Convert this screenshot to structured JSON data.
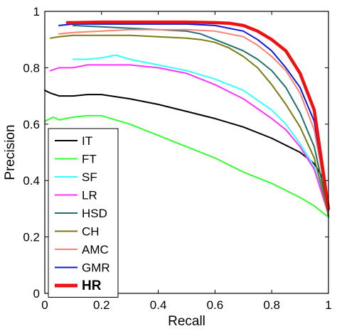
{
  "chart_data": {
    "type": "line",
    "xlabel": "Recall",
    "ylabel": "Precision",
    "xlim": [
      0,
      1
    ],
    "ylim": [
      0,
      1
    ],
    "xticks": [
      "0",
      "0.2",
      "0.4",
      "0.6",
      "0.8",
      "1"
    ],
    "yticks": [
      "0",
      "0.2",
      "0.4",
      "0.6",
      "0.8",
      "1"
    ],
    "legend_position": "bottom-left",
    "grid": false,
    "series": [
      {
        "name": "IT",
        "color": "#000000",
        "bold": false,
        "x": [
          0.0,
          0.02,
          0.05,
          0.1,
          0.15,
          0.2,
          0.3,
          0.4,
          0.5,
          0.6,
          0.7,
          0.8,
          0.9,
          0.95,
          0.98,
          1.0
        ],
        "y": [
          0.72,
          0.71,
          0.7,
          0.7,
          0.705,
          0.705,
          0.69,
          0.67,
          0.645,
          0.62,
          0.59,
          0.55,
          0.5,
          0.46,
          0.41,
          0.27
        ]
      },
      {
        "name": "FT",
        "color": "#33ff33",
        "bold": false,
        "x": [
          0.0,
          0.03,
          0.05,
          0.1,
          0.15,
          0.2,
          0.3,
          0.4,
          0.5,
          0.6,
          0.7,
          0.8,
          0.9,
          0.95,
          1.0
        ],
        "y": [
          0.61,
          0.625,
          0.615,
          0.625,
          0.63,
          0.63,
          0.6,
          0.56,
          0.52,
          0.48,
          0.43,
          0.39,
          0.34,
          0.31,
          0.27
        ]
      },
      {
        "name": "SF",
        "color": "#33ffff",
        "bold": false,
        "x": [
          0.1,
          0.15,
          0.2,
          0.25,
          0.3,
          0.35,
          0.4,
          0.5,
          0.6,
          0.7,
          0.8,
          0.85,
          0.9,
          0.95,
          1.0
        ],
        "y": [
          0.83,
          0.83,
          0.835,
          0.845,
          0.83,
          0.82,
          0.81,
          0.79,
          0.76,
          0.72,
          0.65,
          0.6,
          0.53,
          0.45,
          0.28
        ]
      },
      {
        "name": "LR",
        "color": "#ff33ff",
        "bold": false,
        "x": [
          0.02,
          0.05,
          0.1,
          0.15,
          0.2,
          0.3,
          0.4,
          0.5,
          0.6,
          0.7,
          0.8,
          0.85,
          0.9,
          0.95,
          1.0
        ],
        "y": [
          0.79,
          0.8,
          0.8,
          0.81,
          0.81,
          0.81,
          0.8,
          0.78,
          0.74,
          0.69,
          0.62,
          0.58,
          0.52,
          0.44,
          0.28
        ]
      },
      {
        "name": "HSD",
        "color": "#1f6f70",
        "bold": false,
        "x": [
          0.1,
          0.2,
          0.3,
          0.4,
          0.5,
          0.55,
          0.6,
          0.65,
          0.7,
          0.75,
          0.8,
          0.85,
          0.9,
          0.95,
          1.0
        ],
        "y": [
          0.95,
          0.945,
          0.94,
          0.935,
          0.93,
          0.92,
          0.9,
          0.88,
          0.86,
          0.83,
          0.79,
          0.73,
          0.64,
          0.52,
          0.29
        ]
      },
      {
        "name": "CH",
        "color": "#7a7a10",
        "bold": false,
        "x": [
          0.02,
          0.05,
          0.1,
          0.2,
          0.3,
          0.4,
          0.5,
          0.55,
          0.6,
          0.65,
          0.7,
          0.75,
          0.8,
          0.85,
          0.9,
          0.95,
          1.0
        ],
        "y": [
          0.905,
          0.91,
          0.915,
          0.915,
          0.915,
          0.91,
          0.905,
          0.9,
          0.89,
          0.87,
          0.84,
          0.8,
          0.74,
          0.67,
          0.59,
          0.48,
          0.28
        ]
      },
      {
        "name": "AMC",
        "color": "#ff8070",
        "bold": false,
        "x": [
          0.05,
          0.1,
          0.2,
          0.3,
          0.4,
          0.5,
          0.6,
          0.7,
          0.75,
          0.8,
          0.85,
          0.9,
          0.95,
          1.0
        ],
        "y": [
          0.92,
          0.925,
          0.93,
          0.935,
          0.935,
          0.935,
          0.93,
          0.91,
          0.88,
          0.84,
          0.79,
          0.71,
          0.58,
          0.3
        ]
      },
      {
        "name": "GMR",
        "color": "#0a1adb",
        "bold": false,
        "x": [
          0.05,
          0.1,
          0.2,
          0.3,
          0.4,
          0.5,
          0.6,
          0.7,
          0.75,
          0.8,
          0.85,
          0.9,
          0.95,
          1.0
        ],
        "y": [
          0.95,
          0.955,
          0.955,
          0.955,
          0.955,
          0.955,
          0.95,
          0.93,
          0.9,
          0.86,
          0.8,
          0.73,
          0.61,
          0.3
        ]
      },
      {
        "name": "HR",
        "color": "#ee1111",
        "bold": true,
        "x": [
          0.08,
          0.1,
          0.2,
          0.3,
          0.4,
          0.5,
          0.6,
          0.65,
          0.7,
          0.75,
          0.8,
          0.85,
          0.9,
          0.95,
          1.0
        ],
        "y": [
          0.96,
          0.96,
          0.962,
          0.962,
          0.962,
          0.962,
          0.96,
          0.958,
          0.95,
          0.93,
          0.9,
          0.86,
          0.78,
          0.65,
          0.3
        ]
      }
    ]
  }
}
